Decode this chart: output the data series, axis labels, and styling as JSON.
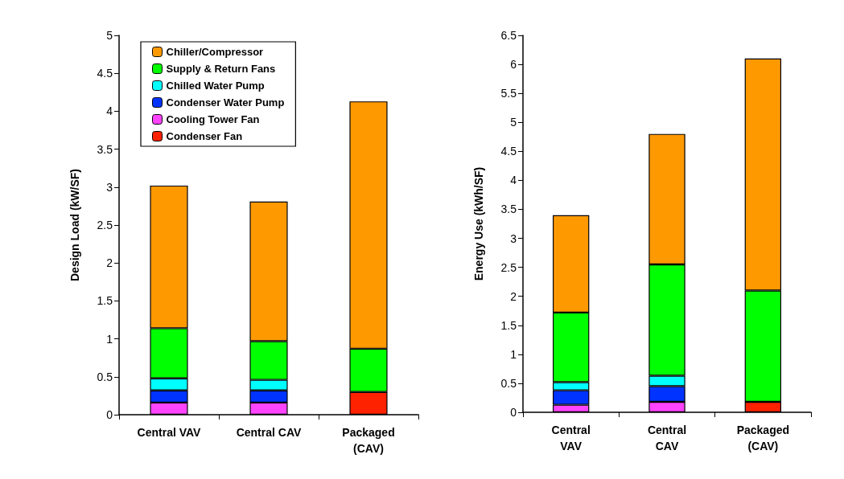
{
  "chart_data": [
    {
      "type": "bar",
      "stacked": true,
      "ylabel": "Design Load (kW/SF)",
      "categories": [
        "Central VAV",
        "Central CAV",
        "Packaged\n(CAV)"
      ],
      "ylim": [
        0,
        5
      ],
      "yticks": [
        0,
        0.5,
        1,
        1.5,
        2,
        2.5,
        3,
        3.5,
        4,
        4.5,
        5
      ],
      "legend": "top left",
      "series": [
        {
          "name": "Condenser Fan",
          "color": "#ff2200",
          "values": [
            null,
            null,
            0.3
          ]
        },
        {
          "name": "Cooling Tower Fan",
          "color": "#ff44ff",
          "values": [
            0.16,
            0.16,
            null
          ]
        },
        {
          "name": "Condenser Water Pump",
          "color": "#0033ff",
          "values": [
            0.16,
            0.16,
            null
          ]
        },
        {
          "name": "Chilled Water Pump",
          "color": "#00ffff",
          "values": [
            0.16,
            0.14,
            null
          ]
        },
        {
          "name": "Supply & Return Fans",
          "color": "#00ff00",
          "values": [
            0.66,
            0.51,
            0.57
          ]
        },
        {
          "name": "Chiller/Compressor",
          "color": "#ff9900",
          "values": [
            1.88,
            1.84,
            3.26
          ]
        }
      ]
    },
    {
      "type": "bar",
      "stacked": true,
      "ylabel": "Energy Use (kWh/SF)",
      "categories": [
        "Central\nVAV",
        "Central\nCAV",
        "Packaged\n(CAV)"
      ],
      "ylim": [
        0,
        6.5
      ],
      "yticks": [
        0,
        0.5,
        1,
        1.5,
        2,
        2.5,
        3,
        3.5,
        4,
        4.5,
        5,
        5.5,
        6,
        6.5
      ],
      "legend": false,
      "series": [
        {
          "color": "#ff2200",
          "values": [
            null,
            null,
            0.18
          ]
        },
        {
          "color": "#ff44ff",
          "values": [
            0.13,
            0.18,
            null
          ]
        },
        {
          "color": "#0033ff",
          "values": [
            0.25,
            0.27,
            null
          ]
        },
        {
          "color": "#00ffff",
          "values": [
            0.14,
            0.18,
            null
          ]
        },
        {
          "color": "#00ff00",
          "values": [
            1.2,
            1.92,
            1.92
          ]
        },
        {
          "color": "#ff9900",
          "values": [
            1.68,
            2.25,
            4.0
          ]
        }
      ]
    }
  ]
}
